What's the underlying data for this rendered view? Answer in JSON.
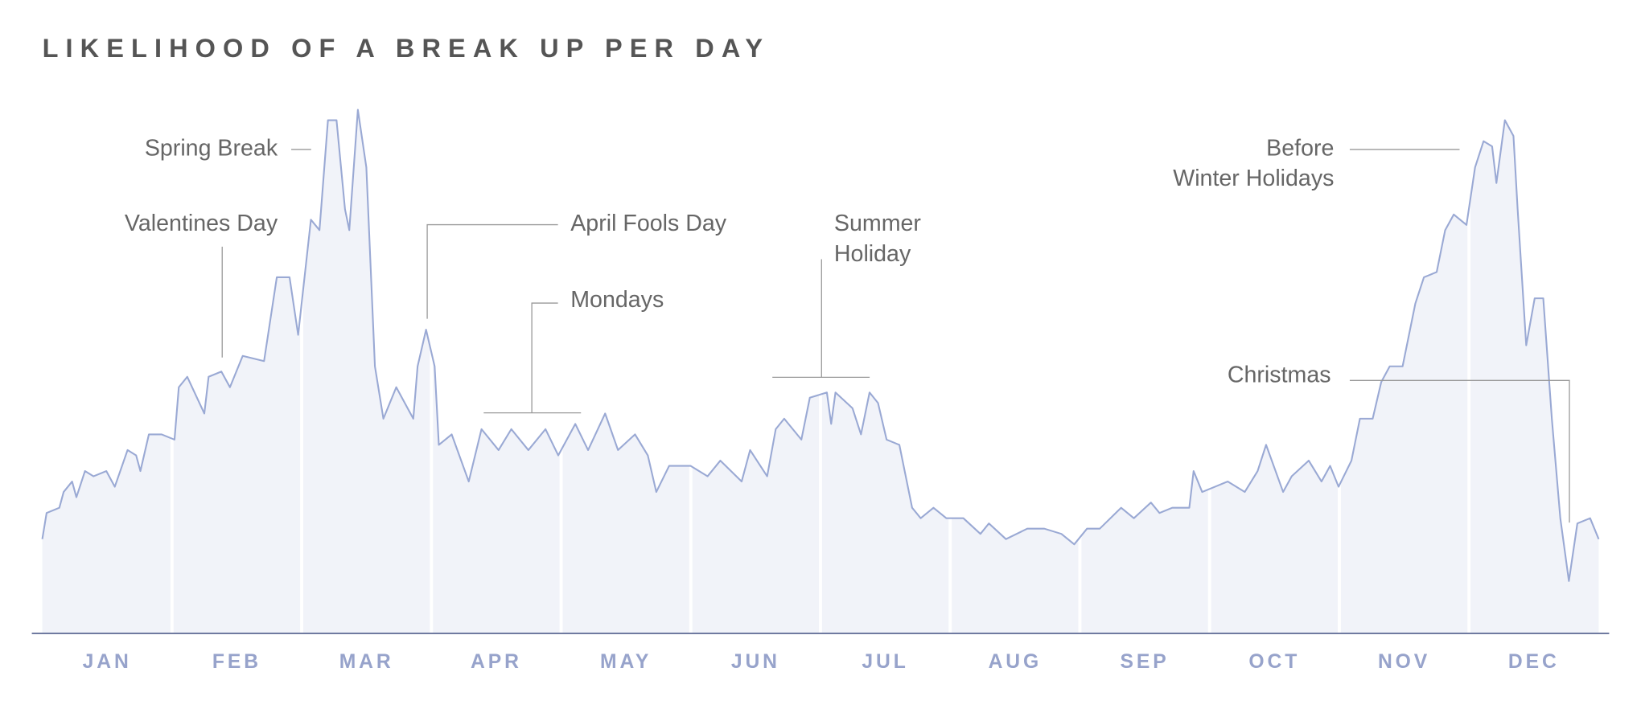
{
  "chart_data": {
    "type": "area",
    "title": "LIKELIHOOD OF A BREAK UP PER DAY",
    "month_labels": [
      "JAN",
      "FEB",
      "MAR",
      "APR",
      "MAY",
      "JUN",
      "JUL",
      "AUG",
      "SEP",
      "OCT",
      "NOV",
      "DEC"
    ],
    "x": [
      0,
      1,
      4,
      5,
      7,
      8,
      10,
      12,
      15,
      17,
      20,
      22,
      23,
      25,
      28,
      31,
      32,
      34,
      38,
      39,
      42,
      44,
      47,
      52,
      55,
      58,
      60,
      63,
      65,
      67,
      69,
      71,
      72,
      74,
      76,
      78,
      80,
      83,
      87,
      88,
      90,
      92,
      93,
      96,
      100,
      103,
      107,
      110,
      114,
      118,
      121,
      125,
      128,
      132,
      135,
      139,
      142,
      144,
      147,
      152,
      156,
      159,
      164,
      166,
      170,
      172,
      174,
      178,
      180,
      184,
      185,
      186,
      190,
      192,
      194,
      196,
      198,
      201,
      204,
      206,
      209,
      212,
      216,
      220,
      222,
      226,
      231,
      235,
      239,
      242,
      245,
      248,
      253,
      256,
      260,
      262,
      265,
      269,
      270,
      272,
      275,
      278,
      282,
      285,
      287,
      291,
      293,
      297,
      300,
      302,
      304,
      307,
      309,
      312,
      314,
      316,
      319,
      322,
      324,
      327,
      329,
      331,
      334,
      336,
      338,
      340,
      341,
      343,
      345,
      346,
      348,
      350,
      352,
      354,
      356,
      358,
      360,
      363,
      365
    ],
    "values": [
      18,
      23,
      24,
      27,
      29,
      26,
      31,
      30,
      31,
      28,
      35,
      34,
      31,
      38,
      38,
      37,
      47,
      49,
      42,
      49,
      50,
      47,
      53,
      52,
      68,
      68,
      57,
      79,
      77,
      98,
      98,
      81,
      77,
      100,
      89,
      51,
      41,
      47,
      41,
      51,
      58,
      51,
      36,
      38,
      29,
      39,
      35,
      39,
      35,
      39,
      34,
      40,
      35,
      42,
      35,
      38,
      34,
      27,
      32,
      32,
      30,
      33,
      29,
      35,
      30,
      39,
      41,
      37,
      45,
      46,
      40,
      46,
      43,
      38,
      46,
      44,
      37,
      36,
      24,
      22,
      24,
      22,
      22,
      19,
      21,
      18,
      20,
      20,
      19,
      17,
      20,
      20,
      24,
      22,
      25,
      23,
      24,
      24,
      31,
      27,
      28,
      29,
      27,
      31,
      36,
      27,
      30,
      33,
      29,
      32,
      28,
      33,
      41,
      41,
      48,
      51,
      51,
      63,
      68,
      69,
      77,
      80,
      78,
      89,
      94,
      93,
      86,
      98,
      95,
      81,
      55,
      64,
      64,
      41,
      22,
      10,
      21,
      22,
      18
    ],
    "xlim": [
      0,
      365
    ],
    "ylim": [
      0,
      100
    ],
    "color": "#9aa9d4",
    "fill": "#f1f3f9",
    "annotations": [
      {
        "text": [
          "Spring Break"
        ]
      },
      {
        "text": [
          "Valentines Day"
        ]
      },
      {
        "text": [
          "April Fools Day"
        ]
      },
      {
        "text": [
          "Mondays"
        ]
      },
      {
        "text": [
          "Summer",
          "Holiday"
        ]
      },
      {
        "text": [
          "Before",
          "Winter Holidays"
        ]
      },
      {
        "text": [
          "Christmas"
        ]
      }
    ]
  }
}
